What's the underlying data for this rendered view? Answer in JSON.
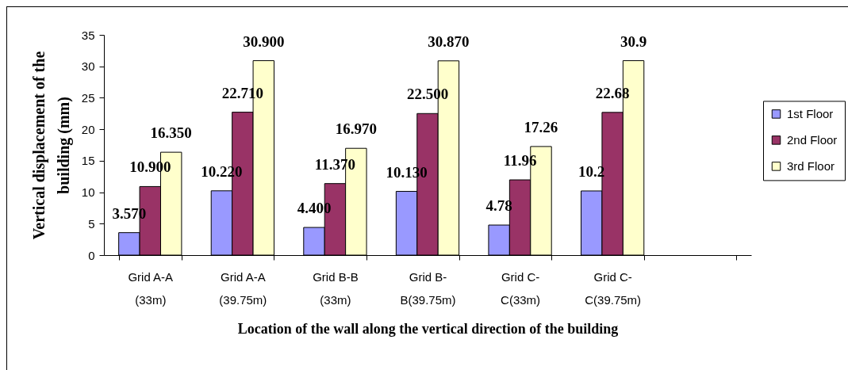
{
  "chart_data": {
    "type": "bar",
    "xlabel": "Location of the wall along the vertical direction of the building",
    "ylabel": "Vertical displacement of the building (mm)",
    "categories": [
      "Grid A-A (33m)",
      "Grid A-A (39.75m)",
      "Grid B-B (33m)",
      "Grid B-B(39.75m)",
      "Grid C-C(33m)",
      "Grid C-C(39.75m)",
      null
    ],
    "series": [
      {
        "name": "1st Floor",
        "color": "#9999ff",
        "values": [
          3.57,
          10.22,
          4.4,
          10.13,
          4.78,
          10.2,
          null
        ],
        "value_labels": [
          "3.570",
          "10.220",
          "4.400",
          "10.130",
          "4.78",
          "10.2",
          null
        ]
      },
      {
        "name": "2nd Floor",
        "color": "#993366",
        "values": [
          10.9,
          22.71,
          11.37,
          22.5,
          11.96,
          22.68,
          null
        ],
        "value_labels": [
          "10.900",
          "22.710",
          "11.370",
          "22.500",
          "11.96",
          "22.68",
          null
        ]
      },
      {
        "name": "3rd Floor",
        "color": "#ffffcc",
        "values": [
          16.35,
          30.9,
          16.97,
          30.87,
          17.26,
          30.9,
          null
        ],
        "value_labels": [
          "16.350",
          "30.900",
          "16.970",
          "30.870",
          "17.26",
          "30.9",
          null
        ]
      }
    ],
    "ylim": [
      0,
      35
    ],
    "yticks": [
      0,
      5,
      10,
      15,
      20,
      25,
      30,
      35
    ],
    "legend": "right"
  }
}
